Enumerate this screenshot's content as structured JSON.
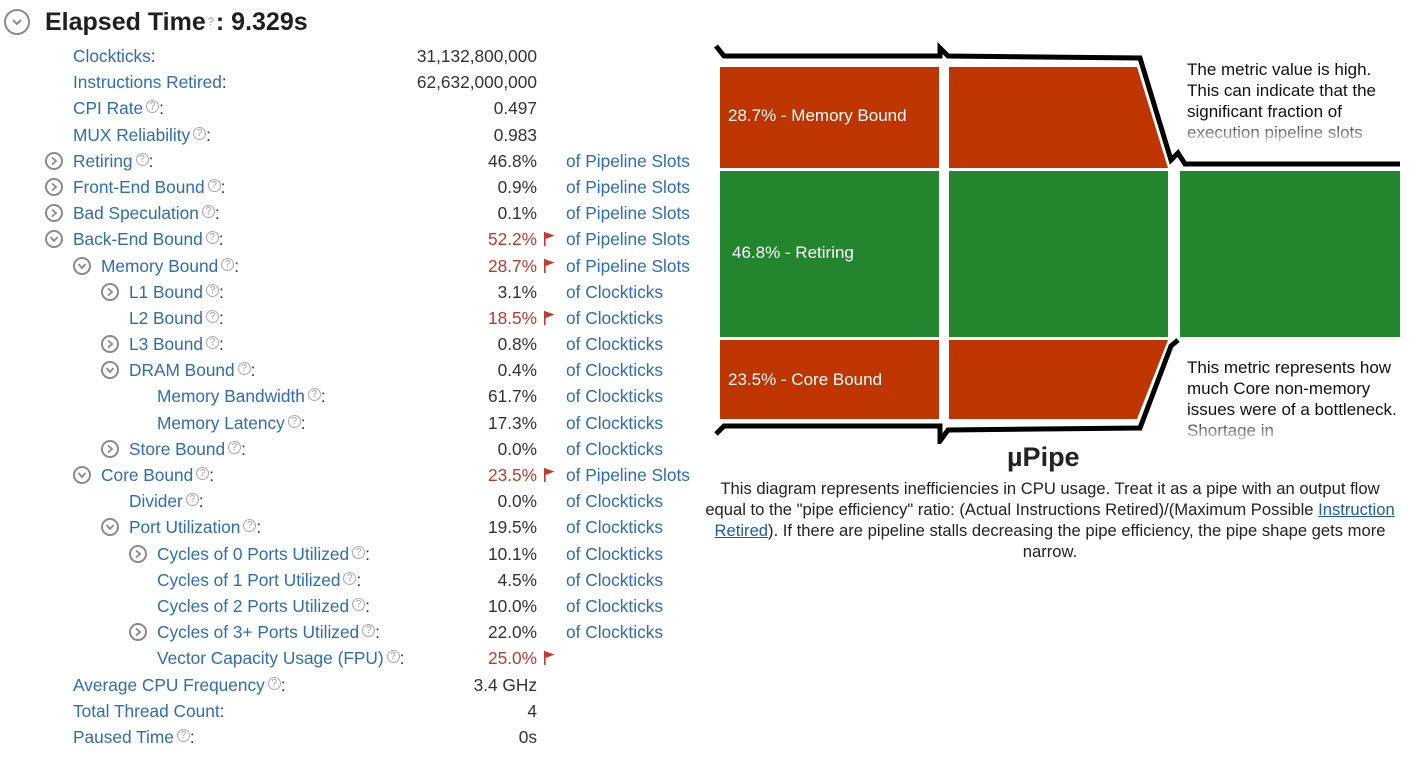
{
  "header": {
    "title": "Elapsed Time",
    "help": "?",
    "colon": ":",
    "value": "9.329s"
  },
  "metrics": [
    {
      "name": "Clockticks",
      "value": "31,132,800,000",
      "unit": ""
    },
    {
      "name": "Instructions Retired",
      "value": "62,632,000,000",
      "unit": ""
    },
    {
      "name": "CPI Rate",
      "value": "0.497",
      "unit": ""
    },
    {
      "name": "MUX Reliability",
      "value": "0.983",
      "unit": ""
    },
    {
      "name": "Retiring",
      "value": "46.8%",
      "unit": "of Pipeline Slots"
    },
    {
      "name": "Front-End Bound",
      "value": "0.9%",
      "unit": "of Pipeline Slots"
    },
    {
      "name": "Bad Speculation",
      "value": "0.1%",
      "unit": "of Pipeline Slots"
    },
    {
      "name": "Back-End Bound",
      "value": "52.2%",
      "unit": "of Pipeline Slots"
    },
    {
      "name": "Memory Bound",
      "value": "28.7%",
      "unit": "of Pipeline Slots"
    },
    {
      "name": "L1 Bound",
      "value": "3.1%",
      "unit": "of Clockticks"
    },
    {
      "name": "L2 Bound",
      "value": "18.5%",
      "unit": "of Clockticks"
    },
    {
      "name": "L3 Bound",
      "value": "0.8%",
      "unit": "of Clockticks"
    },
    {
      "name": "DRAM Bound",
      "value": "0.4%",
      "unit": "of Clockticks"
    },
    {
      "name": "Memory Bandwidth",
      "value": "61.7%",
      "unit": "of Clockticks"
    },
    {
      "name": "Memory Latency",
      "value": "17.3%",
      "unit": "of Clockticks"
    },
    {
      "name": "Store Bound",
      "value": "0.0%",
      "unit": "of Clockticks"
    },
    {
      "name": "Core Bound",
      "value": "23.5%",
      "unit": "of Pipeline Slots"
    },
    {
      "name": "Divider",
      "value": "0.0%",
      "unit": "of Clockticks"
    },
    {
      "name": "Port Utilization",
      "value": "19.5%",
      "unit": "of Clockticks"
    },
    {
      "name": "Cycles of 0 Ports Utilized",
      "value": "10.1%",
      "unit": "of Clockticks"
    },
    {
      "name": "Cycles of 1 Port Utilized",
      "value": "4.5%",
      "unit": "of Clockticks"
    },
    {
      "name": "Cycles of 2 Ports Utilized",
      "value": "10.0%",
      "unit": "of Clockticks"
    },
    {
      "name": "Cycles of 3+ Ports Utilized",
      "value": "22.0%",
      "unit": "of Clockticks"
    },
    {
      "name": "Vector Capacity Usage (FPU)",
      "value": "25.0%",
      "unit": ""
    },
    {
      "name": "Average CPU Frequency",
      "value": "3.4 GHz",
      "unit": ""
    },
    {
      "name": "Total Thread Count",
      "value": "4",
      "unit": ""
    },
    {
      "name": "Paused Time",
      "value": "0s",
      "unit": ""
    }
  ],
  "pipe": {
    "memory_label": "28.7% - Memory Bound",
    "retiring_label": "46.8% - Retiring",
    "core_label": "23.5% - Core Bound",
    "note_top": "The metric value is high. This can indicate that the significant fraction of execution pipeline slots",
    "note_bottom": "This metric represents how much Core non-memory issues were of a bottleneck. Shortage in",
    "colors": {
      "bound": "#bf3500",
      "retiring": "#23862f"
    }
  },
  "upipe": {
    "title": "µPipe",
    "desc_before": "This diagram represents inefficiencies in CPU usage. Treat it as a pipe with an output flow equal to the \"pipe efficiency\" ratio: (Actual Instructions Retired)/(Maximum Possible ",
    "desc_link": "Instruction Retired",
    "desc_after": "). If there are pipeline stalls decreasing the pipe efficiency, the pipe shape gets more narrow."
  }
}
